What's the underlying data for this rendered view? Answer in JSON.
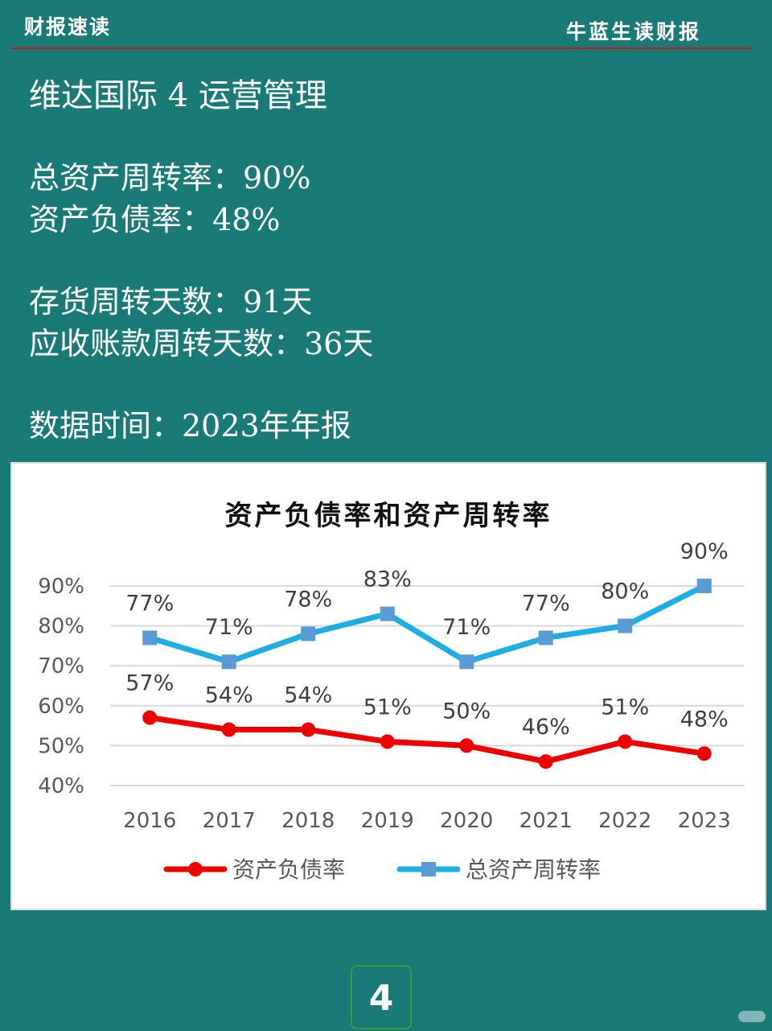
{
  "header": {
    "left": "财报速读",
    "right": "牛蓝生读财报"
  },
  "title": "维达国际 4 运营管理",
  "metrics": {
    "asset_turnover": "总资产周转率：90%",
    "debt_ratio": "资产负债率：48%",
    "inventory_days": "存货周转天数：91天",
    "receivable_days": "应收账款周转天数：36天",
    "data_time": "数据时间：2023年年报"
  },
  "page_number": "4",
  "colors": {
    "background": "#1a7a78",
    "debt": "#ee0000",
    "turnover": "#1eaee4",
    "rule": "#c01a1a"
  },
  "chart_data": {
    "type": "line",
    "title": "资产负债率和资产周转率",
    "categories": [
      "2016",
      "2017",
      "2018",
      "2019",
      "2020",
      "2021",
      "2022",
      "2023"
    ],
    "series": [
      {
        "name": "资产负债率",
        "color": "#ee0000",
        "marker": "circle",
        "values": [
          57,
          54,
          54,
          51,
          50,
          46,
          51,
          48
        ],
        "labels": [
          "57%",
          "54%",
          "54%",
          "51%",
          "50%",
          "46%",
          "51%",
          "48%"
        ]
      },
      {
        "name": "总资产周转率",
        "color": "#1eaee4",
        "marker": "square",
        "values": [
          77,
          71,
          78,
          83,
          71,
          77,
          80,
          90
        ],
        "labels": [
          "77%",
          "71%",
          "78%",
          "83%",
          "71%",
          "77%",
          "80%",
          "90%"
        ]
      }
    ],
    "ylim": [
      40,
      90
    ],
    "yticks": [
      "40%",
      "50%",
      "60%",
      "70%",
      "80%",
      "90%"
    ],
    "grid": true,
    "legend": "bottom"
  }
}
